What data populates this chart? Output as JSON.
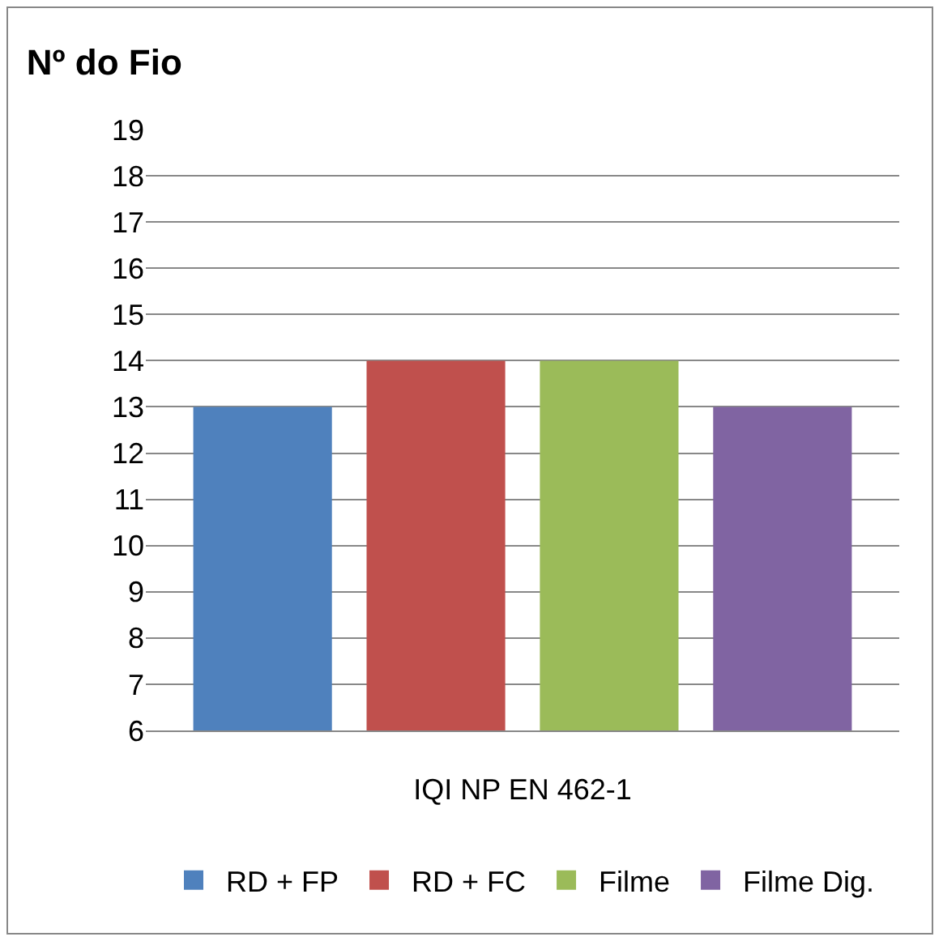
{
  "chart_data": {
    "type": "bar",
    "title": "Nº do Fio",
    "categories": [
      "IQI NP EN 462-1"
    ],
    "series": [
      {
        "name": "RD + FP",
        "color": "#4f81bd",
        "values": [
          13
        ]
      },
      {
        "name": "RD + FC",
        "color": "#c0504d",
        "values": [
          14
        ]
      },
      {
        "name": "Filme",
        "color": "#9bbb59",
        "values": [
          14
        ]
      },
      {
        "name": "Filme Dig.",
        "color": "#8064a2",
        "values": [
          13
        ]
      }
    ],
    "ylim": [
      6,
      19
    ],
    "yticks": [
      6,
      7,
      8,
      9,
      10,
      11,
      12,
      13,
      14,
      15,
      16,
      17,
      18,
      19
    ],
    "grid": "y",
    "legend": "bottom"
  }
}
